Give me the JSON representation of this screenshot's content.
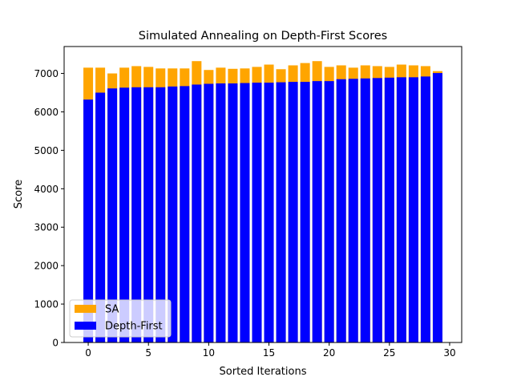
{
  "chart_data": {
    "type": "bar",
    "stacked_overlay": true,
    "title": "Simulated Annealing on Depth-First Scores",
    "xlabel": "Sorted Iterations",
    "ylabel": "Score",
    "xlim": [
      -2,
      31
    ],
    "ylim": [
      0,
      7700
    ],
    "xticks": [
      0,
      5,
      10,
      15,
      20,
      25,
      30
    ],
    "yticks": [
      0,
      1000,
      2000,
      3000,
      4000,
      5000,
      6000,
      7000
    ],
    "grid": false,
    "legend_position": "lower-left",
    "x": [
      0,
      1,
      2,
      3,
      4,
      5,
      6,
      7,
      8,
      9,
      10,
      11,
      12,
      13,
      14,
      15,
      16,
      17,
      18,
      19,
      20,
      21,
      22,
      23,
      24,
      25,
      26,
      27,
      28,
      29
    ],
    "series": [
      {
        "name": "SA",
        "color": "#ffa500",
        "values": [
          7150,
          7150,
          7000,
          7150,
          7190,
          7170,
          7130,
          7130,
          7130,
          7320,
          7090,
          7150,
          7120,
          7130,
          7170,
          7230,
          7110,
          7210,
          7270,
          7320,
          7170,
          7210,
          7150,
          7210,
          7190,
          7170,
          7230,
          7210,
          7190,
          7060
        ]
      },
      {
        "name": "Depth-First",
        "color": "#0000ff",
        "values": [
          6320,
          6500,
          6610,
          6630,
          6640,
          6640,
          6640,
          6660,
          6670,
          6710,
          6730,
          6740,
          6740,
          6750,
          6760,
          6760,
          6770,
          6780,
          6780,
          6800,
          6800,
          6850,
          6860,
          6870,
          6880,
          6890,
          6900,
          6900,
          6920,
          7010
        ]
      }
    ]
  }
}
